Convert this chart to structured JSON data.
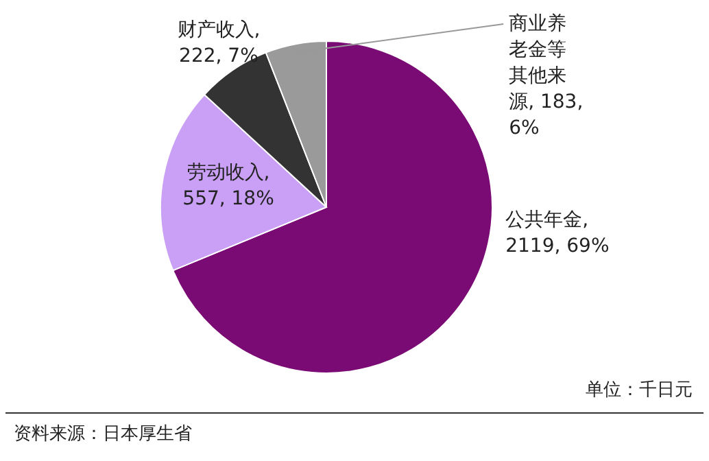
{
  "chart_data": {
    "type": "pie",
    "categories": [
      "公共年金",
      "劳动收入",
      "财产收入",
      "商业养老金等其他来源"
    ],
    "values": [
      2119,
      557,
      222,
      183
    ],
    "colors": [
      "#7a0a74",
      "#c9a0f5",
      "#333333",
      "#9a9a9a"
    ],
    "value_labels": [
      ", 2119, 69%",
      ", 557, 18%",
      ", 222, 7%",
      ", 183, 6%"
    ],
    "annotations": [
      "单位：千日元",
      "资料来源：日本厚生省"
    ]
  }
}
